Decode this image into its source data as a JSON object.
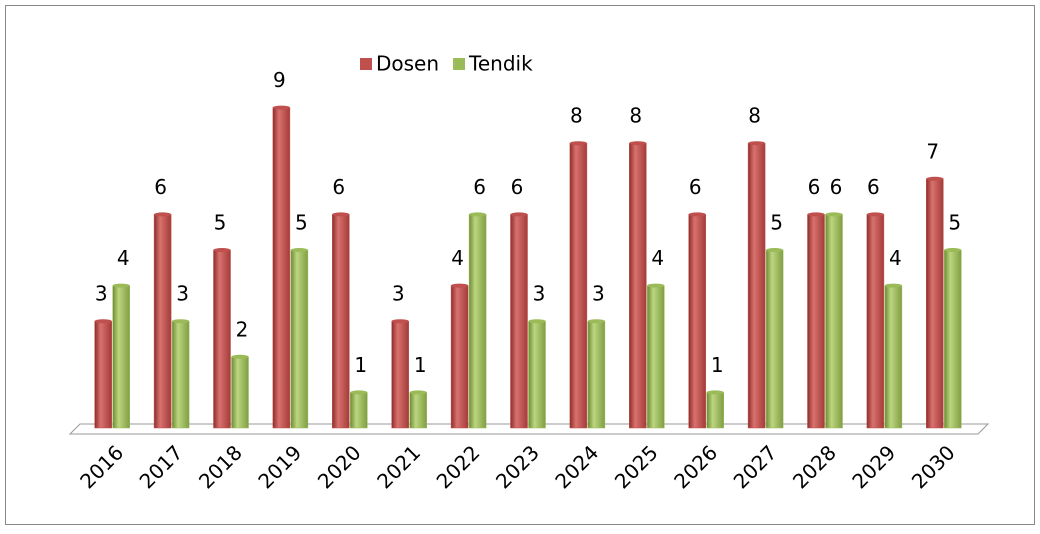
{
  "chart_data": {
    "type": "bar",
    "categories": [
      "2016",
      "2017",
      "2018",
      "2019",
      "2020",
      "2021",
      "2022",
      "2023",
      "2024",
      "2025",
      "2026",
      "2027",
      "2028",
      "2029",
      "2030"
    ],
    "series": [
      {
        "name": "Dosen",
        "color": "#c0504d",
        "values": [
          3,
          6,
          5,
          9,
          6,
          3,
          4,
          6,
          8,
          8,
          6,
          8,
          6,
          6,
          7
        ]
      },
      {
        "name": "Tendik",
        "color": "#9bbb59",
        "values": [
          4,
          3,
          2,
          5,
          1,
          1,
          6,
          3,
          3,
          4,
          1,
          5,
          6,
          4,
          5
        ]
      }
    ],
    "ylim": [
      0,
      10
    ],
    "legend": "top"
  }
}
